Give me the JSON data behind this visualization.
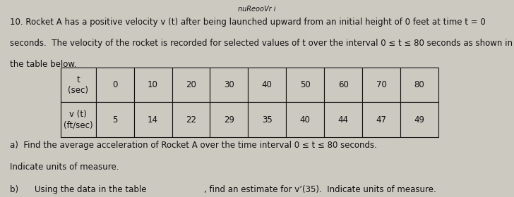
{
  "header_top": "nuReooVr i",
  "intro_line1": "10. Rocket A has a positive velocity v (t) after being launched upward from an initial height of 0 feet at time t = 0",
  "intro_line2": "seconds.  The velocity of the rocket is recorded for selected values of t over the interval 0 ≤ t ≤ 80 seconds as shown in",
  "intro_line3": "the table below.",
  "table_t_label": "t\n(sec)",
  "table_v_label": "v (t)\n(ft/sec)",
  "t_values": [
    0,
    10,
    20,
    30,
    40,
    50,
    60,
    70,
    80
  ],
  "v_values": [
    5,
    14,
    22,
    29,
    35,
    40,
    44,
    47,
    49
  ],
  "part_a_line1": "a)  Find the average acceleration of Rocket A over the time interval 0 ≤ t ≤ 80 seconds.",
  "part_a_line2": "Indicate units of measure.",
  "part_b_prefix": "b)  ",
  "part_b_underline": "Using the data in the table",
  "part_b_suffix": ", find an estimate for v’(35).  Indicate units of measure.",
  "bg_color": "#ccc9c0",
  "text_color": "#111111",
  "table_border_color": "#111111",
  "font_size_body": 8.5,
  "font_size_table": 8.5,
  "font_size_header": 7
}
